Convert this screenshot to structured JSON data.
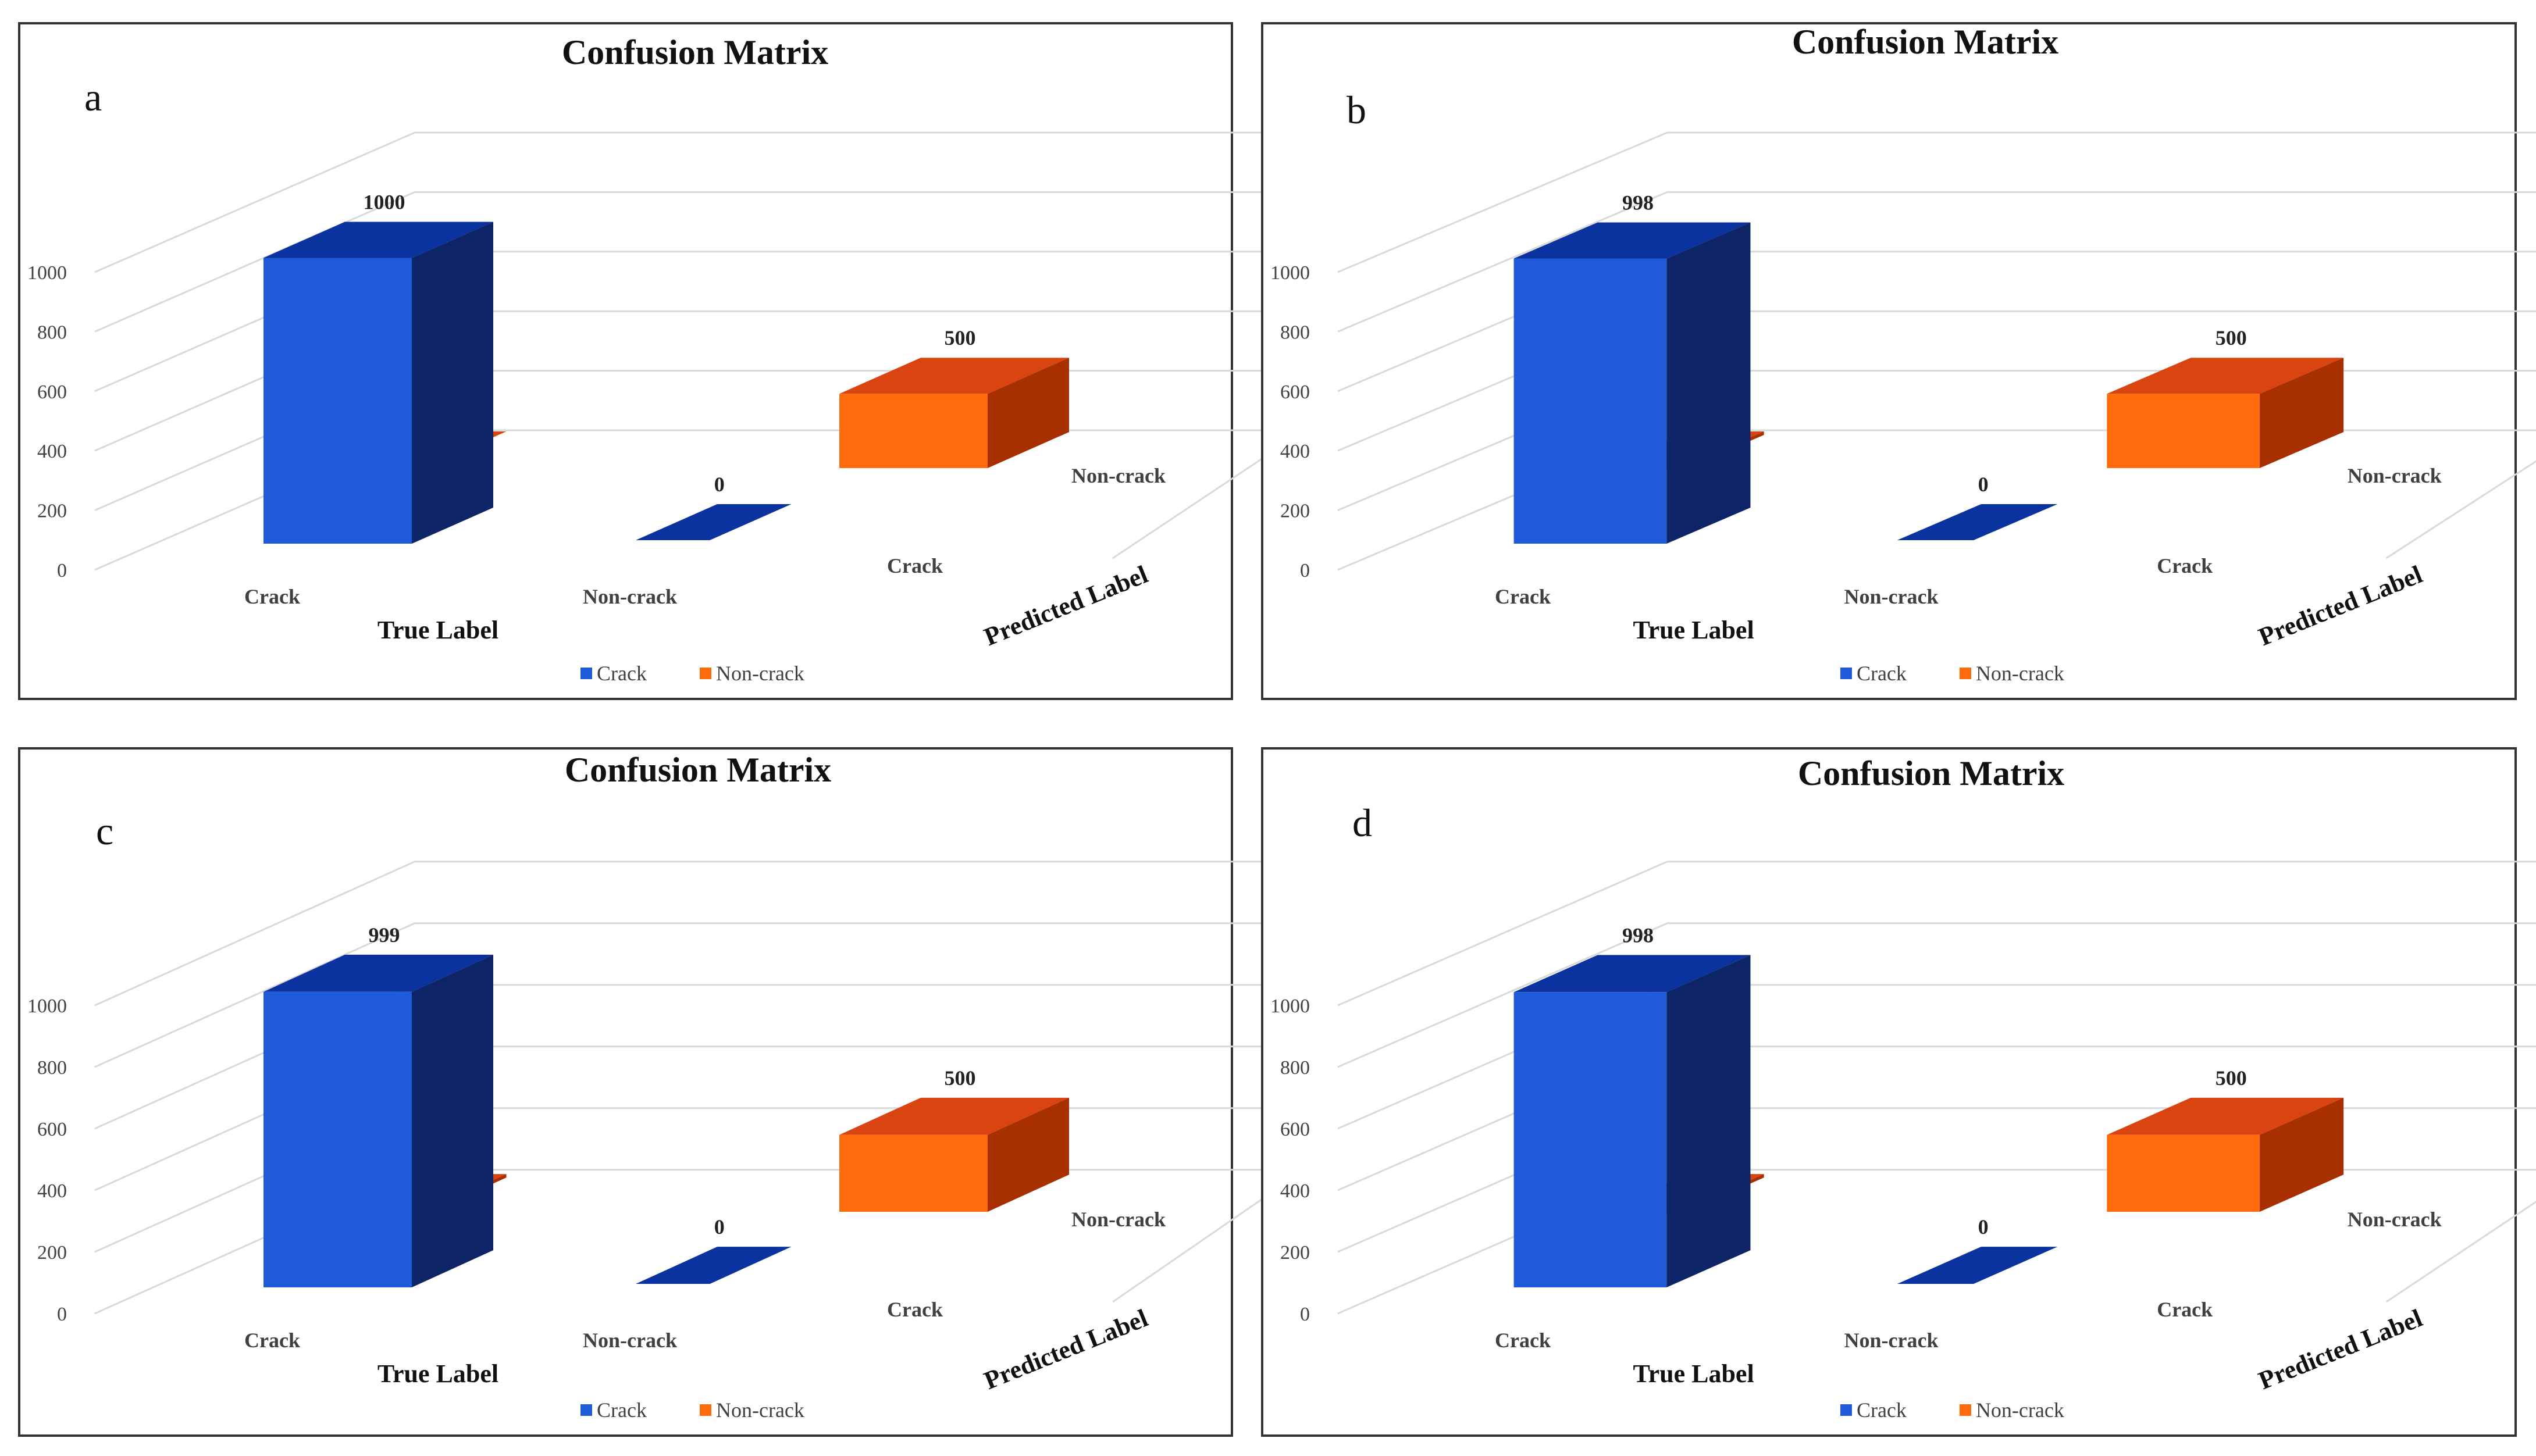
{
  "colors": {
    "crack_front": "#1f5bd8",
    "crack_side": "#0d2466",
    "crack_top": "#0a33a0",
    "noncrack_front": "#ff6a0d",
    "noncrack_side": "#a82f00",
    "noncrack_top": "#d94410"
  },
  "chart_data": [
    {
      "type": "bar",
      "panel": "a",
      "title": "Confusion Matrix",
      "xlabel": "True Label",
      "zlabel": "Predicted Label",
      "categories": [
        "Crack",
        "Non-crack"
      ],
      "predicted_categories": [
        "Crack",
        "Non-crack"
      ],
      "series": [
        {
          "name": "Crack",
          "values": [
            1000,
            0
          ]
        },
        {
          "name": "Non-crack",
          "values": [
            0,
            500
          ]
        }
      ],
      "yticks": [
        0,
        200,
        400,
        600,
        800,
        1000
      ],
      "ylim": [
        0,
        1000
      ],
      "legend": [
        "Crack",
        "Non-crack"
      ]
    },
    {
      "type": "bar",
      "panel": "b",
      "title": "Confusion Matrix",
      "xlabel": "True Label",
      "zlabel": "Predicted Label",
      "categories": [
        "Crack",
        "Non-crack"
      ],
      "predicted_categories": [
        "Crack",
        "Non-crack"
      ],
      "series": [
        {
          "name": "Crack",
          "values": [
            998,
            0
          ]
        },
        {
          "name": "Non-crack",
          "values": [
            2,
            500
          ]
        }
      ],
      "yticks": [
        0,
        200,
        400,
        600,
        800,
        1000
      ],
      "ylim": [
        0,
        1000
      ],
      "legend": [
        "Crack",
        "Non-crack"
      ]
    },
    {
      "type": "bar",
      "panel": "c",
      "title": "Confusion Matrix",
      "xlabel": "True Label",
      "zlabel": "Predicted Label",
      "categories": [
        "Crack",
        "Non-crack"
      ],
      "predicted_categories": [
        "Crack",
        "Non-crack"
      ],
      "series": [
        {
          "name": "Crack",
          "values": [
            999,
            0
          ]
        },
        {
          "name": "Non-crack",
          "values": [
            1,
            500
          ]
        }
      ],
      "yticks": [
        0,
        200,
        400,
        600,
        800,
        1000
      ],
      "ylim": [
        0,
        1000
      ],
      "legend": [
        "Crack",
        "Non-crack"
      ]
    },
    {
      "type": "bar",
      "panel": "d",
      "title": "Confusion Matrix",
      "xlabel": "True Label",
      "zlabel": "Predicted Label",
      "categories": [
        "Crack",
        "Non-crack"
      ],
      "predicted_categories": [
        "Crack",
        "Non-crack"
      ],
      "series": [
        {
          "name": "Crack",
          "values": [
            998,
            0
          ]
        },
        {
          "name": "Non-crack",
          "values": [
            2,
            500
          ]
        }
      ],
      "yticks": [
        0,
        200,
        400,
        600,
        800,
        1000
      ],
      "ylim": [
        0,
        1000
      ],
      "legend": [
        "Crack",
        "Non-crack"
      ]
    }
  ]
}
